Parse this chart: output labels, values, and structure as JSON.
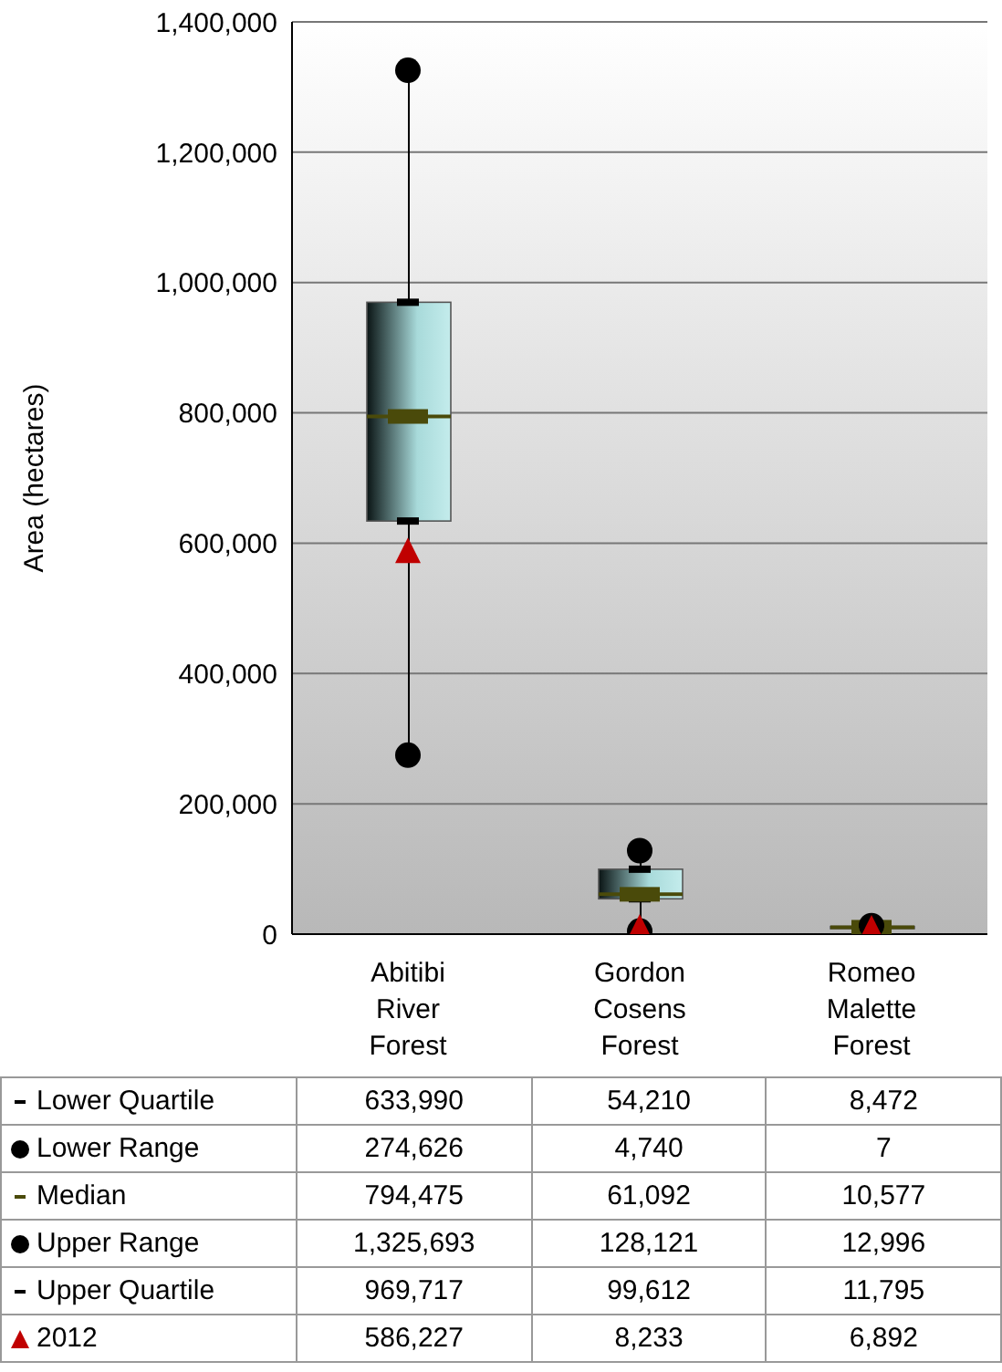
{
  "chart_data": {
    "type": "box",
    "ylabel": "Area (hectares)",
    "categories": [
      "Abitibi River Forest",
      "Gordon Cosens Forest",
      "Romeo Malette Forest"
    ],
    "boxes": [
      {
        "low": 274626,
        "q1": 633990,
        "median": 794475,
        "q3": 969717,
        "high": 1325693
      },
      {
        "low": 4740,
        "q1": 54210,
        "median": 61092,
        "q3": 99612,
        "high": 128121
      },
      {
        "low": 7,
        "q1": 8472,
        "median": 10577,
        "q3": 11795,
        "high": 12996
      }
    ],
    "series": [
      {
        "name": "Lower Quartile",
        "type": "scatter",
        "color": "#000000",
        "values": [
          633990,
          54210,
          null
        ],
        "value_labels": [
          "633,990",
          "54,210",
          "8,472"
        ]
      },
      {
        "name": "Lower Range",
        "type": "scatter",
        "marker": "circle",
        "color": "#000000",
        "values": [
          274626,
          4740,
          null
        ],
        "value_labels": [
          "274,626",
          "4,740",
          "7"
        ]
      },
      {
        "name": "Median",
        "type": "scatter",
        "color": "#4a4a0a",
        "values": [
          794475,
          61092,
          10577
        ],
        "value_labels": [
          "794,475",
          "61,092",
          "10,577"
        ]
      },
      {
        "name": "Upper Range",
        "type": "scatter",
        "marker": "circle",
        "color": "#000000",
        "values": [
          1325693,
          128121,
          12996
        ],
        "value_labels": [
          "1,325,693",
          "128,121",
          "12,996"
        ]
      },
      {
        "name": "Upper Quartile",
        "type": "scatter",
        "color": "#000000",
        "values": [
          969717,
          99612,
          null
        ],
        "value_labels": [
          "969,717",
          "99,612",
          "11,795"
        ]
      },
      {
        "name": "2012",
        "type": "scatter",
        "marker": "triangle",
        "color": "#c00000",
        "values": [
          586227,
          8233,
          6892
        ],
        "value_labels": [
          "586,227",
          "8,233",
          "6,892"
        ]
      }
    ],
    "ylim": [
      0,
      1400000
    ],
    "yticks": [
      0,
      {
        "value": 200000,
        "label": "200,000"
      },
      {
        "value": 400000,
        "label": "400,000"
      },
      {
        "value": 600000,
        "label": "600,000"
      },
      {
        "value": 800000,
        "label": "800,000"
      },
      {
        "value": 1000000,
        "label": "1,000,000"
      },
      {
        "value": 1200000,
        "label": "1,200,000"
      },
      {
        "value": 1400000,
        "label": "1,400,000"
      }
    ],
    "grid": "y",
    "legend": "bottom"
  }
}
